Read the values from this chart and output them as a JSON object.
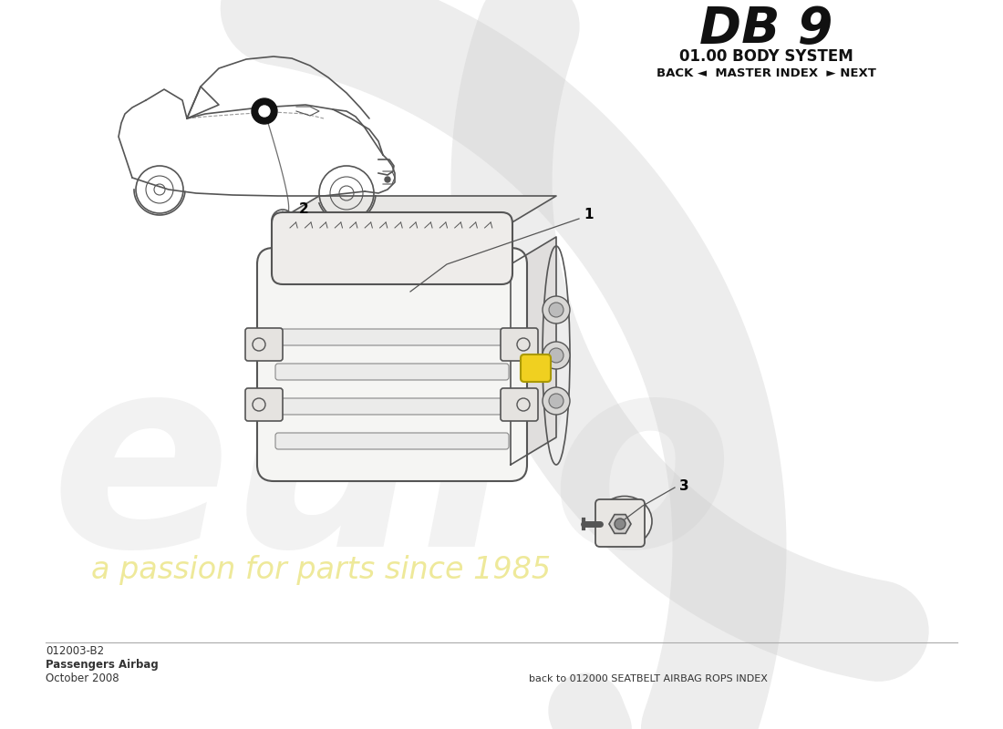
{
  "bg_color": "#ffffff",
  "title_db9": "DB 9",
  "title_system": "01.00 BODY SYSTEM",
  "nav_text": "BACK ◄  MASTER INDEX  ► NEXT",
  "part_code": "012003-B2",
  "part_name": "Passengers Airbag",
  "part_date": "October 2008",
  "footer_text": "back to 012000 SEATBELT AIRBAG ROPS INDEX",
  "watermark_euro": "euro",
  "watermark_sub": "a passion for parts since 1985",
  "label_1": "1",
  "label_2": "2",
  "label_3": "3",
  "line_color": "#444444",
  "sketch_color": "#555555",
  "watermark_gray": "#cccccc",
  "watermark_yellow": "#e8e070",
  "watermark_alpha_gray": 0.35,
  "watermark_alpha_yellow": 0.7
}
